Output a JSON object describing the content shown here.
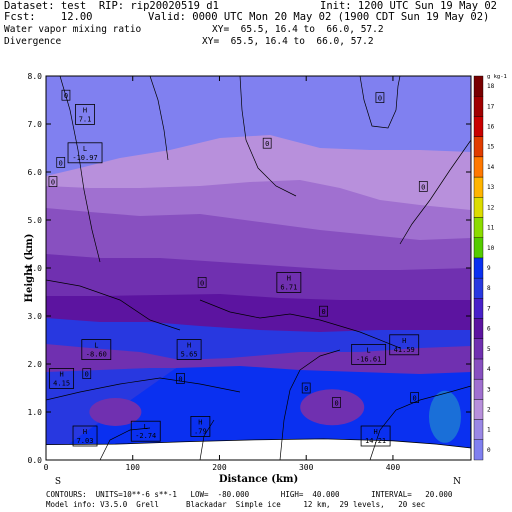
{
  "header": {
    "dataset": "Dataset: test  RIP: rip20020519 d1",
    "init": "Init: 1200 UTC Sun 19 May 02",
    "fcst": "Fcst:    12.00",
    "valid": "Valid: 0000 UTC Mon 20 May 02 (1900 CDT Sun 19 May 02)",
    "field1": "Water vapor mixing ratio",
    "xy1": "XY=  65.5, 16.4 to  66.0, 57.2",
    "field2": "Divergence",
    "xy2": "XY=  65.5, 16.4 to  66.0, 57.2"
  },
  "footer": {
    "contours": "CONTOURS:  UNITS=10**-6 s**-1   LOW=  -80.000       HIGH=  40.000       INTERVAL=   20.000",
    "model": "Model info: V3.5.0  Grell      Blackadar  Simple ice     12 km,  29 levels,   20 sec"
  },
  "chart_data": {
    "type": "cross-section",
    "xlabel": "Distance (km)",
    "ylabel": "Height (km)",
    "xlim": [
      0,
      490
    ],
    "ylim": [
      0,
      8
    ],
    "xticks": [
      "0",
      "100",
      "200",
      "300",
      "400"
    ],
    "xtick_values": [
      0,
      100,
      200,
      300,
      400
    ],
    "yticks": [
      "0.0",
      "1.0",
      "2.0",
      "3.0",
      "4.0",
      "5.0",
      "6.0",
      "7.0",
      "8.0"
    ],
    "ytick_values": [
      0.0,
      1.0,
      2.0,
      3.0,
      4.0,
      5.0,
      6.0,
      7.0,
      8.0
    ],
    "endpoints": {
      "left": "S",
      "right": "N"
    },
    "colorbar": {
      "unit": "g kg-1",
      "labels": [
        "0",
        "1",
        "2",
        "3",
        "4",
        "5",
        "6",
        "7",
        "8",
        "9",
        "10",
        "11",
        "12",
        "13",
        "14",
        "15",
        "16",
        "17",
        "18"
      ],
      "colors": [
        "#8080f0",
        "#9a88e6",
        "#b890dc",
        "#a070d0",
        "#8850c0",
        "#7030b0",
        "#5c14a0",
        "#4820c8",
        "#2838e0",
        "#0a30f0",
        "#55cc00",
        "#8cdc00",
        "#dcdc00",
        "#ffb400",
        "#ff7800",
        "#e03c00",
        "#c80000",
        "#a00000",
        "#780000"
      ]
    },
    "mixing_ratio_bands": [
      {
        "label": "0",
        "color": "#8080f0"
      },
      {
        "label": "1",
        "color": "#b890dc"
      },
      {
        "label": "2",
        "color": "#a070d0"
      },
      {
        "label": "3",
        "color": "#8850c0"
      },
      {
        "label": "4",
        "color": "#7030b0"
      },
      {
        "label": "5",
        "color": "#5c14a0"
      },
      {
        "label": "6",
        "color": "#2838e0"
      },
      {
        "label": "7",
        "color": "#0a30f0"
      }
    ],
    "divergence_extrema": [
      {
        "type": "H",
        "value": "7.1",
        "x": 45,
        "y": 7.2
      },
      {
        "type": "L",
        "value": "-10.97",
        "x": 45,
        "y": 6.4
      },
      {
        "type": "H",
        "value": "6.71",
        "x": 280,
        "y": 3.7
      },
      {
        "type": "L",
        "value": "-8.60",
        "x": 58,
        "y": 2.3
      },
      {
        "type": "H",
        "value": "5.65",
        "x": 165,
        "y": 2.3
      },
      {
        "type": "L",
        "value": "-16.61",
        "x": 372,
        "y": 2.2
      },
      {
        "type": "H",
        "value": "41.59",
        "x": 413,
        "y": 2.4
      },
      {
        "type": "H",
        "value": "4.15",
        "x": 18,
        "y": 1.7
      },
      {
        "type": "H",
        "value": "7.03",
        "x": 45,
        "y": 0.5
      },
      {
        "type": "L",
        "value": "-2.74",
        "x": 115,
        "y": 0.6
      },
      {
        "type": "H",
        "value": ".79",
        "x": 178,
        "y": 0.7
      },
      {
        "type": "H",
        "value": "14.21",
        "x": 380,
        "y": 0.5
      }
    ],
    "zero_labels": [
      {
        "text": "0",
        "x": 23,
        "y": 7.6
      },
      {
        "text": "0",
        "x": 385,
        "y": 7.55
      },
      {
        "text": "0",
        "x": 255,
        "y": 6.6
      },
      {
        "text": "0",
        "x": 17,
        "y": 6.2
      },
      {
        "text": "0",
        "x": 8,
        "y": 5.8
      },
      {
        "text": "0",
        "x": 435,
        "y": 5.7
      },
      {
        "text": "0",
        "x": 180,
        "y": 3.7
      },
      {
        "text": "0",
        "x": 320,
        "y": 3.1
      },
      {
        "text": "0",
        "x": 47,
        "y": 1.8
      },
      {
        "text": "0",
        "x": 300,
        "y": 1.5
      },
      {
        "text": "0",
        "x": 335,
        "y": 1.2
      },
      {
        "text": "0",
        "x": 425,
        "y": 1.3
      },
      {
        "text": "0",
        "x": 155,
        "y": 1.7
      }
    ]
  }
}
